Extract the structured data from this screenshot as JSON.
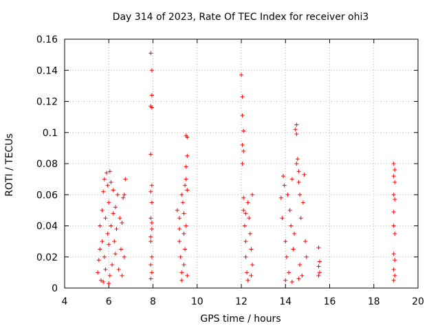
{
  "chart_data": {
    "type": "scatter",
    "title": "Day 314 of 2023, Rate Of TEC Index for receiver ohi3",
    "xlabel": "GPS time / hours",
    "ylabel": "ROTI / TECUs",
    "xlim": [
      4,
      20
    ],
    "ylim": [
      0,
      0.16
    ],
    "xticks": [
      "4",
      "6",
      "8",
      "10",
      "12",
      "14",
      "16",
      "18",
      "20"
    ],
    "yticks": [
      "0",
      "0.02",
      "0.04",
      "0.06",
      "0.08",
      "0.1",
      "0.12",
      "0.14",
      "0.16"
    ],
    "grid": true,
    "marker": "+",
    "color": "#ff0000",
    "series": [
      {
        "points": [
          [
            5.5,
            0.01
          ],
          [
            5.55,
            0.018
          ],
          [
            5.6,
            0.025
          ],
          [
            5.6,
            0.04
          ],
          [
            5.65,
            0.005
          ],
          [
            5.7,
            0.03
          ],
          [
            5.7,
            0.05
          ],
          [
            5.75,
            0.062
          ],
          [
            5.8,
            0.02
          ],
          [
            5.8,
            0.07
          ],
          [
            5.85,
            0.012
          ],
          [
            5.85,
            0.045
          ],
          [
            5.9,
            0.074
          ],
          [
            5.95,
            0.035
          ],
          [
            5.95,
            0.066
          ],
          [
            6.0,
            0.028
          ],
          [
            6.0,
            0.055
          ],
          [
            6.05,
            0.008
          ],
          [
            6.05,
            0.075
          ],
          [
            6.1,
            0.04
          ],
          [
            6.1,
            0.068
          ],
          [
            6.15,
            0.015
          ],
          [
            6.2,
            0.048
          ],
          [
            6.2,
            0.063
          ],
          [
            6.25,
            0.03
          ],
          [
            6.3,
            0.022
          ],
          [
            6.3,
            0.052
          ],
          [
            6.35,
            0.038
          ],
          [
            6.4,
            0.06
          ],
          [
            6.45,
            0.012
          ],
          [
            6.5,
            0.045
          ],
          [
            6.55,
            0.025
          ],
          [
            6.6,
            0.042
          ],
          [
            6.65,
            0.058
          ],
          [
            6.7,
            0.06
          ],
          [
            6.75,
            0.07
          ],
          [
            6.7,
            0.02
          ],
          [
            6.6,
            0.008
          ],
          [
            5.75,
            0.004
          ],
          [
            6.0,
            0.003
          ],
          [
            7.9,
            0.151
          ],
          [
            7.95,
            0.14
          ],
          [
            7.95,
            0.124
          ],
          [
            7.9,
            0.117
          ],
          [
            7.95,
            0.116
          ],
          [
            7.9,
            0.086
          ],
          [
            7.95,
            0.066
          ],
          [
            7.9,
            0.062
          ],
          [
            7.95,
            0.055
          ],
          [
            7.9,
            0.045
          ],
          [
            7.95,
            0.038
          ],
          [
            7.9,
            0.03
          ],
          [
            7.95,
            0.02
          ],
          [
            7.9,
            0.015
          ],
          [
            7.95,
            0.01
          ],
          [
            7.9,
            0.006
          ],
          [
            7.95,
            0.042
          ],
          [
            7.9,
            0.033
          ],
          [
            9.1,
            0.05
          ],
          [
            9.2,
            0.045
          ],
          [
            9.2,
            0.03
          ],
          [
            9.25,
            0.02
          ],
          [
            9.3,
            0.06
          ],
          [
            9.3,
            0.01
          ],
          [
            9.35,
            0.055
          ],
          [
            9.4,
            0.035
          ],
          [
            9.4,
            0.015
          ],
          [
            9.45,
            0.066
          ],
          [
            9.5,
            0.098
          ],
          [
            9.55,
            0.097
          ],
          [
            9.5,
            0.078
          ],
          [
            9.55,
            0.085
          ],
          [
            9.5,
            0.07
          ],
          [
            9.55,
            0.063
          ],
          [
            9.5,
            0.04
          ],
          [
            9.45,
            0.025
          ],
          [
            9.55,
            0.008
          ],
          [
            9.3,
            0.005
          ],
          [
            9.2,
            0.038
          ],
          [
            9.4,
            0.048
          ],
          [
            12.0,
            0.137
          ],
          [
            12.05,
            0.123
          ],
          [
            12.05,
            0.111
          ],
          [
            12.1,
            0.101
          ],
          [
            12.05,
            0.092
          ],
          [
            12.1,
            0.088
          ],
          [
            12.05,
            0.08
          ],
          [
            12.1,
            0.058
          ],
          [
            12.1,
            0.05
          ],
          [
            12.15,
            0.04
          ],
          [
            12.2,
            0.03
          ],
          [
            12.2,
            0.02
          ],
          [
            12.25,
            0.01
          ],
          [
            12.3,
            0.055
          ],
          [
            12.35,
            0.045
          ],
          [
            12.4,
            0.035
          ],
          [
            12.45,
            0.025
          ],
          [
            12.5,
            0.06
          ],
          [
            12.5,
            0.015
          ],
          [
            12.45,
            0.008
          ],
          [
            12.3,
            0.005
          ],
          [
            12.2,
            0.048
          ],
          [
            13.8,
            0.058
          ],
          [
            13.85,
            0.045
          ],
          [
            13.9,
            0.072
          ],
          [
            13.95,
            0.066
          ],
          [
            14.0,
            0.03
          ],
          [
            14.05,
            0.02
          ],
          [
            14.1,
            0.06
          ],
          [
            14.15,
            0.01
          ],
          [
            14.2,
            0.05
          ],
          [
            14.25,
            0.04
          ],
          [
            14.3,
            0.07
          ],
          [
            14.35,
            0.025
          ],
          [
            14.4,
            0.035
          ],
          [
            14.45,
            0.102
          ],
          [
            14.5,
            0.105
          ],
          [
            14.5,
            0.099
          ],
          [
            14.55,
            0.083
          ],
          [
            14.5,
            0.08
          ],
          [
            14.6,
            0.075
          ],
          [
            14.6,
            0.068
          ],
          [
            14.65,
            0.06
          ],
          [
            14.65,
            0.015
          ],
          [
            14.7,
            0.045
          ],
          [
            14.75,
            0.008
          ],
          [
            14.8,
            0.055
          ],
          [
            14.85,
            0.073
          ],
          [
            14.9,
            0.03
          ],
          [
            14.95,
            0.02
          ],
          [
            14.0,
            0.005
          ],
          [
            14.3,
            0.004
          ],
          [
            14.6,
            0.006
          ],
          [
            15.5,
            0.026
          ],
          [
            15.55,
            0.017
          ],
          [
            15.5,
            0.014
          ],
          [
            15.55,
            0.01
          ],
          [
            15.5,
            0.008
          ],
          [
            18.9,
            0.08
          ],
          [
            18.95,
            0.076
          ],
          [
            18.9,
            0.072
          ],
          [
            18.95,
            0.068
          ],
          [
            18.9,
            0.06
          ],
          [
            18.95,
            0.057
          ],
          [
            18.9,
            0.049
          ],
          [
            18.9,
            0.04
          ],
          [
            18.95,
            0.035
          ],
          [
            18.9,
            0.022
          ],
          [
            18.95,
            0.018
          ],
          [
            18.9,
            0.012
          ],
          [
            18.95,
            0.008
          ],
          [
            18.9,
            0.005
          ]
        ]
      }
    ]
  }
}
